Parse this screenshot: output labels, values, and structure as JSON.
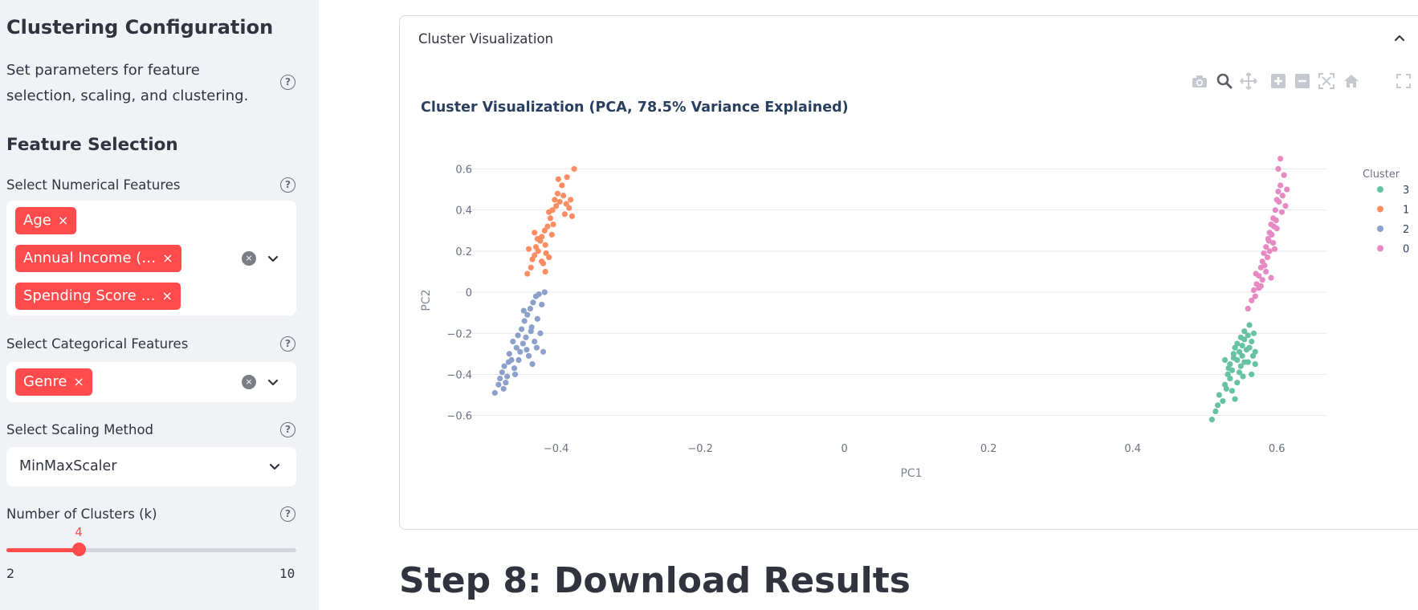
{
  "sidebar": {
    "title": "Clustering Configuration",
    "description": "Set parameters for feature selection, scaling, and clustering.",
    "section_title": "Feature Selection",
    "numerical": {
      "label": "Select Numerical Features",
      "chips": [
        "Age",
        "Annual Income (…",
        "Spending Score …"
      ]
    },
    "categorical": {
      "label": "Select Categorical Features",
      "chips": [
        "Genre"
      ]
    },
    "scaling": {
      "label": "Select Scaling Method",
      "value": "MinMaxScaler"
    },
    "clusters": {
      "label": "Number of Clusters (k)",
      "value": 4,
      "value_text": "4",
      "min": 2,
      "min_text": "2",
      "max": 10,
      "max_text": "10"
    },
    "help_glyph": "?",
    "chip_remove_glyph": "×",
    "clear_glyph": "×",
    "accent_color": "#ff4b4b",
    "background_color": "#f0f2f6"
  },
  "main": {
    "expander_title": "Cluster Visualization",
    "step_title": "Step 8: Download Results",
    "modebar_icons": [
      "camera-icon",
      "zoom-icon",
      "pan-icon",
      "zoom-in-icon",
      "zoom-out-icon",
      "autoscale-icon",
      "reset-axes-icon",
      "fullscreen-icon"
    ]
  },
  "chart_data": {
    "type": "scatter",
    "title": "Cluster Visualization (PCA, 78.5% Variance Explained)",
    "xlabel": "PC1",
    "ylabel": "PC2",
    "xlim": [
      -0.54,
      0.67
    ],
    "ylim": [
      -0.66,
      0.68
    ],
    "x_ticks": [
      -0.4,
      -0.2,
      0,
      0.2,
      0.4,
      0.6
    ],
    "x_tick_labels": [
      "−0.4",
      "−0.2",
      "0",
      "0.2",
      "0.4",
      "0.6"
    ],
    "y_ticks": [
      0.6,
      0.4,
      0.2,
      0,
      -0.2,
      -0.4,
      -0.6
    ],
    "y_tick_labels": [
      "0.6",
      "0.4",
      "0.2",
      "0",
      "−0.2",
      "−0.4",
      "−0.6"
    ],
    "grid": "horizontal",
    "legend": {
      "title": "Cluster",
      "placement": "right"
    },
    "series": [
      {
        "name": "3",
        "color": "#66c2a5",
        "points": [
          [
            0.51,
            -0.62
          ],
          [
            0.515,
            -0.58
          ],
          [
            0.518,
            -0.55
          ],
          [
            0.52,
            -0.5
          ],
          [
            0.525,
            -0.53
          ],
          [
            0.528,
            -0.45
          ],
          [
            0.53,
            -0.47
          ],
          [
            0.532,
            -0.4
          ],
          [
            0.535,
            -0.42
          ],
          [
            0.535,
            -0.35
          ],
          [
            0.538,
            -0.38
          ],
          [
            0.54,
            -0.3
          ],
          [
            0.54,
            -0.32
          ],
          [
            0.542,
            -0.27
          ],
          [
            0.545,
            -0.33
          ],
          [
            0.545,
            -0.25
          ],
          [
            0.548,
            -0.29
          ],
          [
            0.55,
            -0.22
          ],
          [
            0.55,
            -0.36
          ],
          [
            0.552,
            -0.31
          ],
          [
            0.552,
            -0.26
          ],
          [
            0.555,
            -0.23
          ],
          [
            0.555,
            -0.19
          ],
          [
            0.558,
            -0.28
          ],
          [
            0.56,
            -0.34
          ],
          [
            0.56,
            -0.21
          ],
          [
            0.562,
            -0.16
          ],
          [
            0.565,
            -0.24
          ],
          [
            0.565,
            -0.4
          ],
          [
            0.568,
            -0.2
          ],
          [
            0.57,
            -0.29
          ],
          [
            0.57,
            -0.35
          ],
          [
            0.545,
            -0.44
          ],
          [
            0.538,
            -0.48
          ],
          [
            0.548,
            -0.39
          ],
          [
            0.533,
            -0.37
          ],
          [
            0.542,
            -0.52
          ],
          [
            0.555,
            -0.34
          ],
          [
            0.562,
            -0.27
          ],
          [
            0.528,
            -0.33
          ],
          [
            0.553,
            -0.41
          ],
          [
            0.567,
            -0.31
          ]
        ]
      },
      {
        "name": "1",
        "color": "#fc8d62",
        "points": [
          [
            -0.44,
            0.09
          ],
          [
            -0.435,
            0.12
          ],
          [
            -0.433,
            0.16
          ],
          [
            -0.43,
            0.18
          ],
          [
            -0.428,
            0.22
          ],
          [
            -0.425,
            0.2
          ],
          [
            -0.422,
            0.25
          ],
          [
            -0.42,
            0.27
          ],
          [
            -0.418,
            0.14
          ],
          [
            -0.416,
            0.3
          ],
          [
            -0.415,
            0.23
          ],
          [
            -0.412,
            0.32
          ],
          [
            -0.41,
            0.17
          ],
          [
            -0.408,
            0.36
          ],
          [
            -0.406,
            0.28
          ],
          [
            -0.405,
            0.4
          ],
          [
            -0.402,
            0.45
          ],
          [
            -0.4,
            0.42
          ],
          [
            -0.398,
            0.48
          ],
          [
            -0.395,
            0.44
          ],
          [
            -0.392,
            0.52
          ],
          [
            -0.39,
            0.47
          ],
          [
            -0.388,
            0.38
          ],
          [
            -0.385,
            0.56
          ],
          [
            -0.382,
            0.41
          ],
          [
            -0.38,
            0.45
          ],
          [
            -0.378,
            0.37
          ],
          [
            -0.375,
            0.6
          ],
          [
            -0.404,
            0.33
          ],
          [
            -0.426,
            0.26
          ],
          [
            -0.438,
            0.21
          ],
          [
            -0.415,
            0.1
          ],
          [
            -0.397,
            0.55
          ],
          [
            -0.41,
            0.39
          ],
          [
            -0.42,
            0.15
          ],
          [
            -0.43,
            0.29
          ],
          [
            -0.414,
            0.19
          ],
          [
            -0.386,
            0.43
          ]
        ]
      },
      {
        "name": "2",
        "color": "#8da0cb",
        "points": [
          [
            -0.485,
            -0.49
          ],
          [
            -0.48,
            -0.45
          ],
          [
            -0.478,
            -0.42
          ],
          [
            -0.475,
            -0.39
          ],
          [
            -0.472,
            -0.36
          ],
          [
            -0.47,
            -0.44
          ],
          [
            -0.468,
            -0.41
          ],
          [
            -0.465,
            -0.3
          ],
          [
            -0.462,
            -0.33
          ],
          [
            -0.46,
            -0.24
          ],
          [
            -0.458,
            -0.37
          ],
          [
            -0.455,
            -0.27
          ],
          [
            -0.453,
            -0.21
          ],
          [
            -0.45,
            -0.29
          ],
          [
            -0.448,
            -0.18
          ],
          [
            -0.446,
            -0.25
          ],
          [
            -0.444,
            -0.14
          ],
          [
            -0.442,
            -0.22
          ],
          [
            -0.44,
            -0.11
          ],
          [
            -0.438,
            -0.31
          ],
          [
            -0.436,
            -0.08
          ],
          [
            -0.434,
            -0.17
          ],
          [
            -0.432,
            -0.05
          ],
          [
            -0.43,
            -0.24
          ],
          [
            -0.428,
            -0.02
          ],
          [
            -0.426,
            -0.13
          ],
          [
            -0.424,
            -0.01
          ],
          [
            -0.422,
            -0.2
          ],
          [
            -0.42,
            -0.06
          ],
          [
            -0.418,
            -0.29
          ],
          [
            -0.416,
            0.0
          ],
          [
            -0.473,
            -0.47
          ],
          [
            -0.466,
            -0.34
          ],
          [
            -0.452,
            -0.33
          ],
          [
            -0.441,
            -0.28
          ],
          [
            -0.435,
            -0.19
          ],
          [
            -0.457,
            -0.4
          ],
          [
            -0.445,
            -0.09
          ],
          [
            -0.427,
            -0.27
          ],
          [
            -0.433,
            -0.35
          ]
        ]
      },
      {
        "name": "0",
        "color": "#e78ac3",
        "points": [
          [
            0.56,
            -0.08
          ],
          [
            0.565,
            -0.04
          ],
          [
            0.568,
            0.01
          ],
          [
            0.57,
            -0.02
          ],
          [
            0.572,
            0.04
          ],
          [
            0.575,
            0.08
          ],
          [
            0.575,
            0.02
          ],
          [
            0.578,
            0.12
          ],
          [
            0.58,
            0.06
          ],
          [
            0.58,
            0.15
          ],
          [
            0.582,
            0.19
          ],
          [
            0.585,
            0.1
          ],
          [
            0.585,
            0.22
          ],
          [
            0.588,
            0.26
          ],
          [
            0.59,
            0.2
          ],
          [
            0.59,
            0.29
          ],
          [
            0.592,
            0.33
          ],
          [
            0.592,
            0.07
          ],
          [
            0.595,
            0.36
          ],
          [
            0.595,
            0.24
          ],
          [
            0.598,
            0.4
          ],
          [
            0.6,
            0.45
          ],
          [
            0.6,
            0.31
          ],
          [
            0.602,
            0.49
          ],
          [
            0.602,
            0.6
          ],
          [
            0.605,
            0.52
          ],
          [
            0.605,
            0.65
          ],
          [
            0.608,
            0.47
          ],
          [
            0.61,
            0.57
          ],
          [
            0.612,
            0.42
          ],
          [
            0.614,
            0.5
          ],
          [
            0.587,
            0.17
          ],
          [
            0.593,
            0.28
          ],
          [
            0.597,
            0.21
          ],
          [
            0.583,
            0.13
          ],
          [
            0.578,
            0.03
          ],
          [
            0.599,
            0.35
          ],
          [
            0.603,
            0.44
          ],
          [
            0.607,
            0.39
          ],
          [
            0.571,
            0.09
          ],
          [
            0.589,
            0.25
          ],
          [
            0.596,
            0.32
          ]
        ]
      }
    ]
  }
}
